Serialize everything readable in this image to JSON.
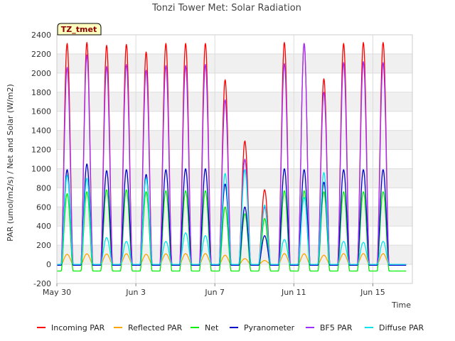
{
  "chart_data": {
    "type": "line",
    "title": "Tonzi Tower Met: Solar Radiation",
    "xlabel": "Time",
    "ylabel": "PAR (umol/m2/s) / Net and Solar (W/m2)",
    "tag": "TZ_tmet",
    "ylim": [
      -200,
      2400
    ],
    "yticks": [
      -200,
      0,
      200,
      400,
      600,
      800,
      1000,
      1200,
      1400,
      1600,
      1800,
      2000,
      2200,
      2400
    ],
    "xlim_days": [
      0,
      18
    ],
    "xticks": [
      {
        "day": 0,
        "label": "May 30"
      },
      {
        "day": 4,
        "label": "Jun 3"
      },
      {
        "day": 8,
        "label": "Jun 7"
      },
      {
        "day": 12,
        "label": "Jun 11"
      },
      {
        "day": 16,
        "label": "Jun 15"
      }
    ],
    "grid": true,
    "legend_position": "bottom",
    "days": [
      "May 30",
      "May 31",
      "Jun 1",
      "Jun 2",
      "Jun 3",
      "Jun 4",
      "Jun 5",
      "Jun 6",
      "Jun 7",
      "Jun 8",
      "Jun 9",
      "Jun 10",
      "Jun 11",
      "Jun 12",
      "Jun 13",
      "Jun 14",
      "Jun 15",
      "Jun 16"
    ],
    "series": [
      {
        "name": "Incoming PAR",
        "color": "#ff0000",
        "night": 0,
        "daily_peak": [
          2310,
          2320,
          2290,
          2300,
          2220,
          2310,
          2310,
          2310,
          1930,
          1290,
          780,
          2320,
          2310,
          1940,
          2310,
          2320,
          2320,
          0
        ]
      },
      {
        "name": "Reflected PAR",
        "color": "#ffa500",
        "night": 0,
        "daily_peak": [
          105,
          110,
          108,
          110,
          105,
          110,
          112,
          112,
          95,
          60,
          40,
          112,
          110,
          95,
          112,
          112,
          112,
          0
        ]
      },
      {
        "name": "Net",
        "color": "#00ee00",
        "night": -70,
        "daily_peak": [
          740,
          760,
          780,
          780,
          760,
          770,
          770,
          770,
          600,
          530,
          480,
          770,
          770,
          760,
          760,
          760,
          760,
          0
        ]
      },
      {
        "name": "Pyranometer",
        "color": "#0000cc",
        "night": -10,
        "daily_peak": [
          990,
          1050,
          980,
          990,
          940,
          990,
          1000,
          1000,
          840,
          600,
          300,
          1000,
          990,
          860,
          990,
          990,
          990,
          0
        ]
      },
      {
        "name": "BF5 PAR",
        "color": "#9b30ff",
        "night": 0,
        "daily_peak": [
          2060,
          2190,
          2070,
          2090,
          2030,
          2080,
          2080,
          2090,
          1720,
          1100,
          600,
          2100,
          2310,
          1800,
          2110,
          2120,
          2110,
          0
        ]
      },
      {
        "name": "Diffuse PAR",
        "color": "#00e5ee",
        "night": 0,
        "daily_peak": [
          930,
          900,
          280,
          240,
          900,
          240,
          330,
          300,
          950,
          990,
          620,
          260,
          700,
          960,
          240,
          230,
          240,
          0
        ]
      }
    ]
  }
}
